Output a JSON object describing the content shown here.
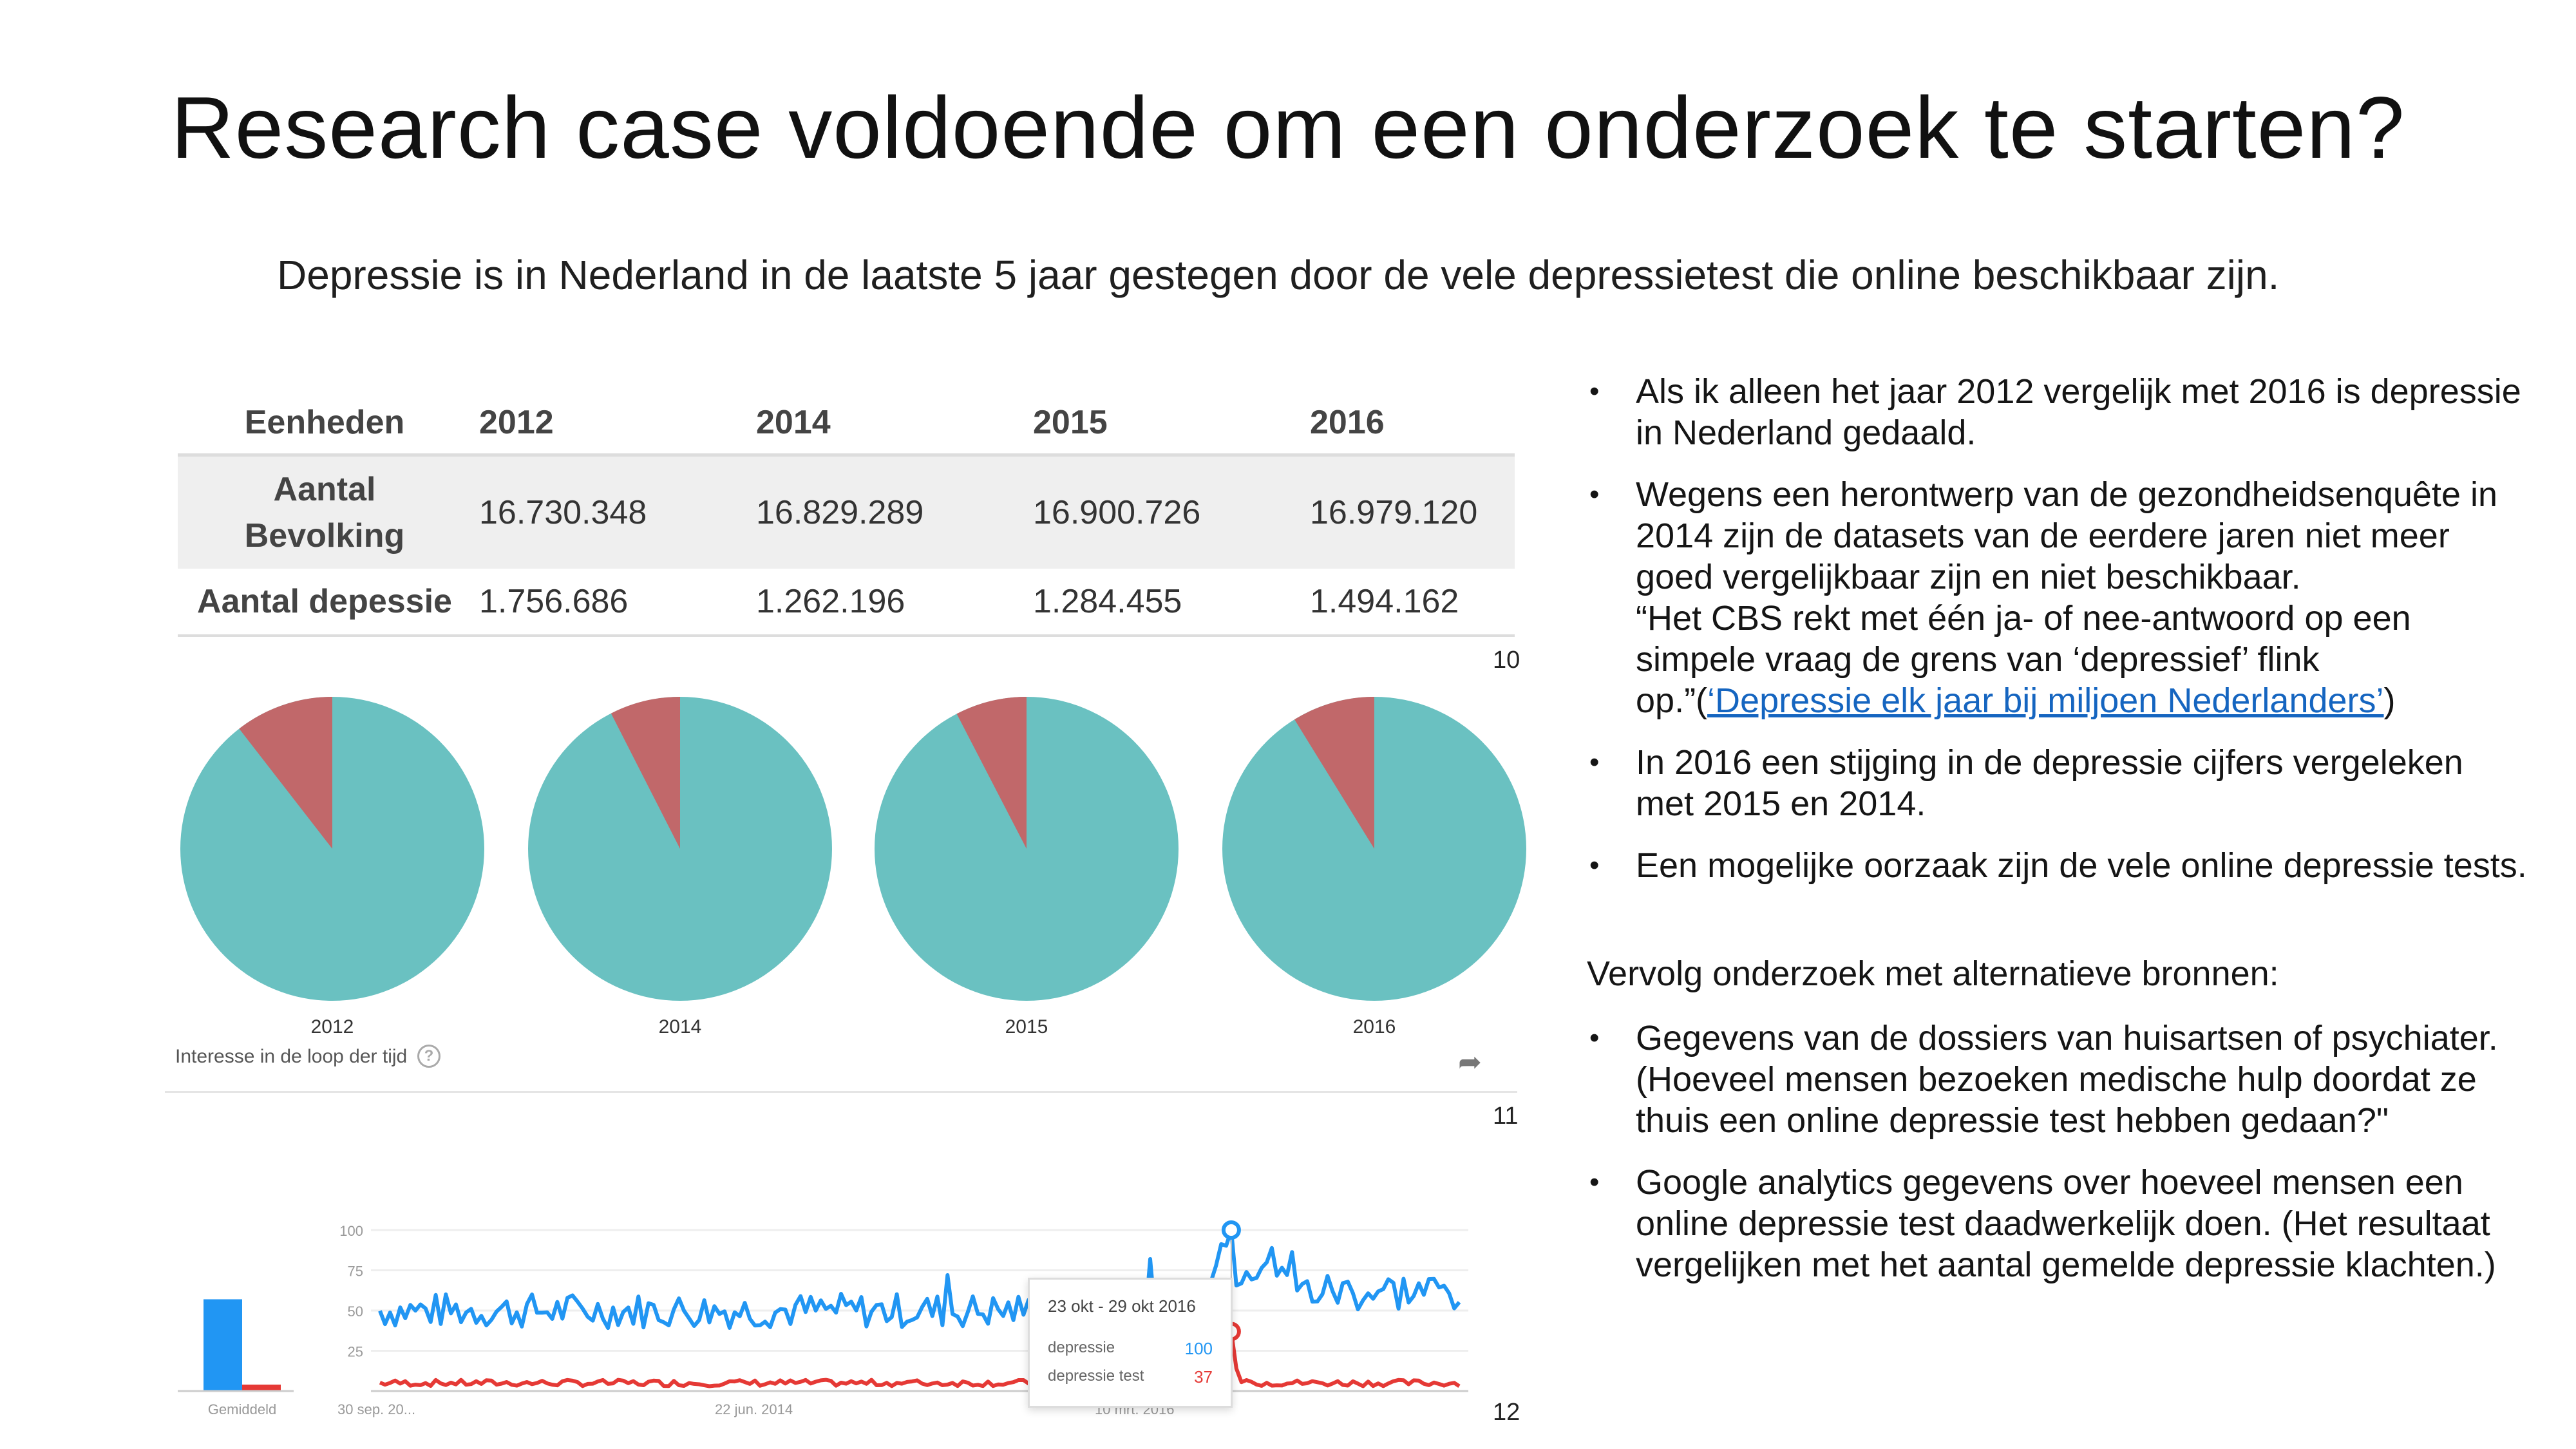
{
  "title": "Research case voldoende om een onderzoek te starten?",
  "subtitle": "Depressie is in Nederland in de laatste 5 jaar gestegen door de vele depressietest die online beschikbaar zijn.",
  "table": {
    "headers": [
      "Eenheden",
      "2012",
      "2014",
      "2015",
      "2016"
    ],
    "row_population": {
      "label_line1": "Aantal",
      "label_line2": "Bevolking",
      "values": [
        "16.730.348",
        "16.829.289",
        "16.900.726",
        "16.979.120"
      ]
    },
    "row_depression": {
      "label": "Aantal depessie",
      "values": [
        "1.756.686",
        "1.262.196",
        "1.284.455",
        "1.494.162"
      ]
    }
  },
  "refs": {
    "r10": "10",
    "r11": "11",
    "r12": "12"
  },
  "pies": {
    "colors": {
      "rest": "#6ac1c1",
      "depression": "#c1686a"
    },
    "items": [
      {
        "label": "2012",
        "depression": 1756686,
        "population": 16730348
      },
      {
        "label": "2014",
        "depression": 1262196,
        "population": 16829289
      },
      {
        "label": "2015",
        "depression": 1284455,
        "population": 16900726
      },
      {
        "label": "2016",
        "depression": 1494162,
        "population": 16979120
      }
    ]
  },
  "trends": {
    "header": "Interesse in de loop der tijd",
    "help": "?",
    "share": "➦",
    "yticks": [
      "100",
      "75",
      "50",
      "25"
    ],
    "xlabels": [
      "Gemiddeld",
      "30 sep. 20...",
      "22 jun. 2014",
      "10 mrt. 2016"
    ],
    "average": {
      "depressie": 57,
      "depressie_test": 4
    },
    "colors": {
      "depressie": "#2196f3",
      "depressie_test": "#e53935"
    },
    "tooltip": {
      "date": "23 okt - 29 okt 2016",
      "series1": "depressie",
      "value1": "100",
      "series2": "depressie test",
      "value2": "37"
    }
  },
  "bullets": [
    "Als ik alleen het jaar 2012 vergelijk met 2016 is depressie in Nederland gedaald.",
    "Wegens een herontwerp van de gezondheidsenquête in 2014 zijn de datasets van de eerdere jaren niet meer goed vergelijkbaar zijn en niet beschikbaar.",
    "In 2016 een stijging in de depressie cijfers vergeleken met 2015 en 2014.",
    "Een mogelijke oorzaak zijn de vele online depressie tests."
  ],
  "quote": {
    "text": "“Het CBS rekt met één ja- of nee-antwoord op een simpele vraag de grens van ‘depressief’ flink op.”(",
    "link": "‘Depressie elk jaar bij miljoen Nederlanders’",
    "close": ")"
  },
  "followup_title": "Vervolg onderzoek met alternatieve bronnen:",
  "followup_bullets": [
    "Gegevens van de dossiers van huisartsen of psychiater. (Hoeveel mensen bezoeken medische hulp doordat ze thuis een online depressie test hebben gedaan?\"",
    "Google analytics gegevens over hoeveel mensen een online depressie test daadwerkelijk doen. (Het resultaat vergelijken met het aantal gemelde depressie klachten.)"
  ]
}
